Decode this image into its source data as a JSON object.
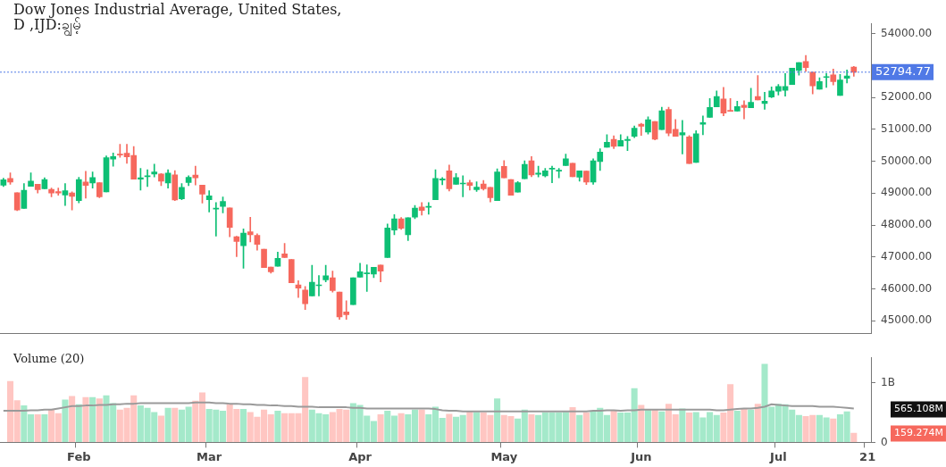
{
  "chart_data": [
    {
      "type": "candlestick",
      "title": "Dow Jones Industrial Average, United States,",
      "subtitle": "D ,IJD:ချွမ့်",
      "categories": [
        null,
        null,
        null,
        null,
        null,
        null,
        null,
        null,
        null,
        null,
        null,
        null,
        null,
        null,
        null,
        null,
        null,
        null,
        null,
        null,
        null,
        null,
        null,
        null,
        null,
        null,
        null,
        null,
        null,
        null,
        null,
        null,
        null,
        null,
        null,
        null,
        null,
        null,
        null,
        null,
        null,
        null,
        null,
        null,
        null,
        null,
        null,
        null,
        null,
        null,
        null,
        null,
        null,
        null,
        null,
        null,
        null,
        null,
        null,
        null,
        null,
        null,
        null,
        null,
        null,
        null,
        null,
        null,
        null,
        null,
        null,
        null,
        null,
        null,
        null,
        null,
        null,
        null,
        null,
        null,
        null,
        null,
        null,
        null,
        null,
        null,
        null,
        null,
        null,
        null,
        null,
        null,
        null,
        null,
        null,
        null,
        null,
        null,
        null,
        null,
        null,
        null,
        null,
        null,
        null,
        null,
        null,
        null,
        null,
        null,
        null,
        null,
        null,
        null,
        null,
        null,
        null,
        null,
        null,
        null,
        null,
        null,
        null,
        null,
        null,
        null,
        null
      ],
      "ohlc": [
        [
          49250,
          49470,
          49210,
          49420
        ],
        [
          49463,
          49637,
          49280,
          49344
        ],
        [
          49015,
          49015,
          48448,
          48475
        ],
        [
          48521,
          49299,
          48521,
          49088
        ],
        [
          49216,
          49637,
          49216,
          49381
        ],
        [
          49280,
          49280,
          49006,
          49106
        ],
        [
          49134,
          49482,
          49134,
          49427
        ],
        [
          49116,
          49161,
          48887,
          49006
        ],
        [
          49052,
          49161,
          48933,
          49006
        ],
        [
          48942,
          49299,
          48613,
          49079
        ],
        [
          49006,
          49042,
          48475,
          48896
        ],
        [
          48768,
          49500,
          48695,
          49427
        ],
        [
          49353,
          49683,
          48841,
          49244
        ],
        [
          49317,
          49664,
          49161,
          49491
        ],
        [
          49326,
          49326,
          48859,
          48887
        ],
        [
          49042,
          50168,
          49042,
          50113
        ],
        [
          50067,
          50259,
          49847,
          50149
        ],
        [
          50213,
          50533,
          50122,
          50195
        ],
        [
          50250,
          50533,
          49939,
          50140
        ],
        [
          50186,
          50460,
          49436,
          49436
        ],
        [
          49436,
          49774,
          49097,
          49482
        ],
        [
          49518,
          49738,
          49207,
          49545
        ],
        [
          49600,
          49911,
          49509,
          49664
        ],
        [
          49600,
          49619,
          49235,
          49372
        ],
        [
          49317,
          49738,
          49161,
          49628
        ],
        [
          49573,
          49710,
          48768,
          48787
        ],
        [
          48823,
          49299,
          48795,
          49180
        ],
        [
          49335,
          49546,
          49235,
          49500
        ],
        [
          49564,
          49847,
          49253,
          49482
        ],
        [
          49253,
          49253,
          48686,
          48969
        ],
        [
          48795,
          49079,
          48411,
          48914
        ],
        [
          48503,
          48704,
          47652,
          48521
        ],
        [
          48585,
          48878,
          48384,
          48741
        ],
        [
          48539,
          48539,
          47634,
          47927
        ],
        [
          47634,
          47652,
          47012,
          47488
        ],
        [
          47350,
          47881,
          46646,
          47744
        ],
        [
          47789,
          48247,
          47469,
          47698
        ],
        [
          47680,
          47725,
          47213,
          47396
        ],
        [
          47241,
          47241,
          46664,
          46664
        ],
        [
          46682,
          46682,
          46490,
          46536
        ],
        [
          46710,
          47149,
          46710,
          46957
        ],
        [
          47094,
          47423,
          46984,
          46984
        ],
        [
          46920,
          46920,
          46188,
          46188
        ],
        [
          46124,
          46252,
          45731,
          46024
        ],
        [
          45960,
          46070,
          45347,
          45530
        ],
        [
          45777,
          46737,
          45777,
          46207
        ],
        [
          46097,
          46417,
          45777,
          46125
        ],
        [
          46280,
          46737,
          46216,
          46408
        ],
        [
          46344,
          46555,
          45896,
          45942
        ],
        [
          45896,
          45896,
          45045,
          45118
        ],
        [
          45274,
          45622,
          45045,
          45192
        ],
        [
          45503,
          46344,
          45503,
          46344
        ],
        [
          46362,
          46802,
          46362,
          46536
        ],
        [
          46472,
          46756,
          45914,
          46500
        ],
        [
          46463,
          46673,
          46353,
          46673
        ],
        [
          46747,
          46747,
          46216,
          46555
        ],
        [
          46984,
          48036,
          46984,
          47908
        ],
        [
          47844,
          48329,
          47698,
          48192
        ],
        [
          48192,
          48238,
          47863,
          47899
        ],
        [
          47698,
          48228,
          47515,
          48228
        ],
        [
          48247,
          48613,
          48201,
          48530
        ],
        [
          48567,
          48704,
          48311,
          48457
        ],
        [
          48558,
          48704,
          48338,
          48576
        ],
        [
          48796,
          49738,
          48796,
          49463
        ],
        [
          49408,
          49491,
          49262,
          49445
        ],
        [
          49701,
          49884,
          49070,
          49134
        ],
        [
          49280,
          49619,
          49280,
          49491
        ],
        [
          49289,
          49546,
          48887,
          49317
        ],
        [
          49326,
          49408,
          49097,
          49244
        ],
        [
          49106,
          49354,
          49052,
          49189
        ],
        [
          49289,
          49399,
          49097,
          49134
        ],
        [
          49180,
          49180,
          48722,
          48860
        ],
        [
          48768,
          49765,
          48768,
          49665
        ],
        [
          49838,
          50021,
          49482,
          49482
        ],
        [
          49427,
          49427,
          48933,
          48933
        ],
        [
          49033,
          49363,
          49033,
          49326
        ],
        [
          49454,
          50012,
          49454,
          49902
        ],
        [
          50012,
          50149,
          49518,
          49573
        ],
        [
          49591,
          49847,
          49509,
          49628
        ],
        [
          49546,
          49774,
          49509,
          49701
        ],
        [
          49756,
          49847,
          49326,
          49784
        ],
        [
          49692,
          49774,
          49482,
          49710
        ],
        [
          49866,
          50222,
          49866,
          50076
        ],
        [
          49939,
          49939,
          49518,
          49518
        ],
        [
          49500,
          49701,
          49372,
          49701
        ],
        [
          49692,
          49692,
          49271,
          49344
        ],
        [
          49344,
          50076,
          49280,
          50012
        ],
        [
          49994,
          50396,
          49710,
          50286
        ],
        [
          50442,
          50835,
          50442,
          50597
        ],
        [
          50689,
          50799,
          50396,
          50469
        ],
        [
          50478,
          50835,
          50478,
          50652
        ],
        [
          50652,
          50780,
          50332,
          50689
        ],
        [
          50780,
          51110,
          50744,
          51036
        ],
        [
          51164,
          51192,
          50808,
          51100
        ],
        [
          50917,
          51393,
          50853,
          51302
        ],
        [
          51247,
          51247,
          50670,
          50689
        ],
        [
          50991,
          51695,
          50991,
          51585
        ],
        [
          51622,
          51695,
          50799,
          50881
        ],
        [
          50999,
          51311,
          50780,
          50780
        ],
        [
          50826,
          51283,
          50232,
          50899
        ],
        [
          50762,
          50808,
          49930,
          49930
        ],
        [
          49966,
          50963,
          49966,
          50863
        ],
        [
          51164,
          51421,
          50835,
          51210
        ],
        [
          51375,
          51969,
          51375,
          51686
        ],
        [
          51704,
          52207,
          51704,
          52033
        ],
        [
          51951,
          52317,
          51430,
          51512
        ],
        [
          51594,
          51969,
          51567,
          51567
        ],
        [
          51576,
          51887,
          51576,
          51713
        ],
        [
          51759,
          51896,
          51329,
          51686
        ],
        [
          51677,
          52290,
          51677,
          51851
        ],
        [
          52033,
          52692,
          51924,
          51924
        ],
        [
          51814,
          52161,
          51631,
          51887
        ],
        [
          52015,
          52335,
          51997,
          52207
        ],
        [
          52198,
          52408,
          52079,
          52344
        ],
        [
          52225,
          52756,
          52042,
          52344
        ],
        [
          52408,
          52921,
          52408,
          52921
        ],
        [
          52847,
          53094,
          52701,
          53094
        ],
        [
          53131,
          53323,
          52820,
          52939
        ],
        [
          52793,
          52793,
          52116,
          52363
        ],
        [
          52262,
          52619,
          52262,
          52500
        ],
        [
          52628,
          52756,
          52317,
          52655
        ],
        [
          52710,
          52893,
          52390,
          52500
        ],
        [
          52061,
          52728,
          52061,
          52546
        ],
        [
          52600,
          52866,
          52454,
          52673
        ],
        [
          52957,
          52976,
          52664,
          52794.77
        ],
        null,
        null
      ],
      "colors": [
        "#0dbf74",
        "#f6685d",
        "#f6685d",
        "#0dbf74",
        "#0dbf74",
        "#f6685d",
        "#0dbf74",
        "#f6685d",
        "#f6685d",
        "#0dbf74",
        "#f6685d",
        "#0dbf74",
        "#f6685d",
        "#0dbf74",
        "#f6685d",
        "#0dbf74",
        "#0dbf74",
        "#f6685d",
        "#f6685d",
        "#f6685d",
        "#0dbf74",
        "#0dbf74",
        "#0dbf74",
        "#f6685d",
        "#0dbf74",
        "#f6685d",
        "#0dbf74",
        "#0dbf74",
        "#f6685d",
        "#f6685d",
        "#0dbf74",
        "#0dbf74",
        "#0dbf74",
        "#f6685d",
        "#f6685d",
        "#0dbf74",
        "#f6685d",
        "#f6685d",
        "#f6685d",
        "#f6685d",
        "#0dbf74",
        "#f6685d",
        "#f6685d",
        "#f6685d",
        "#f6685d",
        "#0dbf74",
        "#0dbf74",
        "#0dbf74",
        "#f6685d",
        "#f6685d",
        "#f6685d",
        "#0dbf74",
        "#0dbf74",
        "#0dbf74",
        "#0dbf74",
        "#f6685d",
        "#0dbf74",
        "#0dbf74",
        "#f6685d",
        "#0dbf74",
        "#0dbf74",
        "#f6685d",
        "#0dbf74",
        "#0dbf74",
        "#0dbf74",
        "#f6685d",
        "#0dbf74",
        "#0dbf74",
        "#f6685d",
        "#0dbf74",
        "#f6685d",
        "#f6685d",
        "#0dbf74",
        "#f6685d",
        "#f6685d",
        "#0dbf74",
        "#0dbf74",
        "#f6685d",
        "#0dbf74",
        "#0dbf74",
        "#0dbf74",
        "#0dbf74",
        "#0dbf74",
        "#f6685d",
        "#0dbf74",
        "#f6685d",
        "#0dbf74",
        "#0dbf74",
        "#0dbf74",
        "#f6685d",
        "#0dbf74",
        "#0dbf74",
        "#0dbf74",
        "#f6685d",
        "#0dbf74",
        "#f6685d",
        "#0dbf74",
        "#f6685d",
        "#f6685d",
        "#0dbf74",
        "#f6685d",
        "#0dbf74",
        "#0dbf74",
        "#0dbf74",
        "#0dbf74",
        "#f6685d",
        "#f6685d",
        "#0dbf74",
        "#f6685d",
        "#0dbf74",
        "#f6685d",
        "#0dbf74",
        "#0dbf74",
        "#0dbf74",
        "#0dbf74",
        "#0dbf74",
        "#0dbf74",
        "#f6685d",
        "#f6685d",
        "#0dbf74",
        "#0dbf74",
        "#f6685d",
        "#0dbf74",
        "#0dbf74",
        "#f6685d",
        null,
        null
      ],
      "ylim": [
        44590,
        54330
      ],
      "yticks": [
        {
          "value": 45000,
          "label": "45000.00"
        },
        {
          "value": 46000,
          "label": "46000.00"
        },
        {
          "value": 47000,
          "label": "47000.00"
        },
        {
          "value": 48000,
          "label": "48000.00"
        },
        {
          "value": 49000,
          "label": "49000.00"
        },
        {
          "value": 50000,
          "label": "50000.00"
        },
        {
          "value": 51000,
          "label": "51000.00"
        },
        {
          "value": 52000,
          "label": "52000.00"
        },
        {
          "value": 53000,
          "label": null
        },
        {
          "value": 54000,
          "label": "54000.00"
        }
      ],
      "tick_labels": "y",
      "ref_lines": [
        {
          "axis": "y",
          "value": 52794.77,
          "label": "52794.77",
          "color": "#5079e6",
          "line_style": "dotted"
        }
      ]
    },
    {
      "type": "bar",
      "title": "Volume (20)",
      "categories": [
        null,
        null,
        null,
        null,
        null,
        null,
        null,
        null,
        null,
        null,
        null,
        "Feb",
        null,
        null,
        null,
        null,
        null,
        null,
        null,
        null,
        null,
        null,
        null,
        null,
        null,
        null,
        null,
        null,
        null,
        null,
        "Mar",
        null,
        null,
        null,
        null,
        null,
        null,
        null,
        null,
        null,
        null,
        null,
        null,
        null,
        null,
        null,
        null,
        null,
        null,
        null,
        null,
        null,
        "Apr",
        null,
        null,
        null,
        null,
        null,
        null,
        null,
        null,
        null,
        null,
        null,
        null,
        null,
        null,
        null,
        null,
        null,
        null,
        null,
        null,
        "May",
        null,
        null,
        null,
        null,
        null,
        null,
        null,
        null,
        null,
        null,
        null,
        null,
        null,
        null,
        null,
        null,
        null,
        null,
        null,
        "Jun",
        null,
        null,
        null,
        null,
        null,
        null,
        null,
        null,
        null,
        null,
        null,
        null,
        null,
        null,
        null,
        null,
        null,
        null,
        null,
        "Jul",
        null,
        null,
        null,
        null,
        null,
        null,
        null,
        null,
        null,
        null,
        null,
        null,
        "21"
      ],
      "series": [
        {
          "type": "bar",
          "values": [
            null,
            1.03,
            0.71,
            0.62,
            0.47,
            0.47,
            0.47,
            0.55,
            0.49,
            0.72,
            0.78,
            0.64,
            0.76,
            0.76,
            0.74,
            0.79,
            0.66,
            0.55,
            0.58,
            0.79,
            0.62,
            0.58,
            0.51,
            0.45,
            0.58,
            0.58,
            0.55,
            0.6,
            0.7,
            0.84,
            0.56,
            0.55,
            0.53,
            0.64,
            0.56,
            0.56,
            0.51,
            0.43,
            0.55,
            0.47,
            0.53,
            0.49,
            0.49,
            0.49,
            1.1,
            0.55,
            0.49,
            0.47,
            0.51,
            0.56,
            0.55,
            0.66,
            0.63,
            0.45,
            0.36,
            0.47,
            0.53,
            0.45,
            0.49,
            0.47,
            0.55,
            0.55,
            0.47,
            0.6,
            0.41,
            0.48,
            0.43,
            0.46,
            0.53,
            0.51,
            0.5,
            0.46,
            0.74,
            0.46,
            0.44,
            0.4,
            0.55,
            0.47,
            0.46,
            0.5,
            0.5,
            0.5,
            0.51,
            0.59,
            0.46,
            0.5,
            0.53,
            0.58,
            0.46,
            0.53,
            0.5,
            0.5,
            0.91,
            0.63,
            0.55,
            0.55,
            0.52,
            0.65,
            0.47,
            0.57,
            0.5,
            0.51,
            0.42,
            0.51,
            0.46,
            0.5,
            0.98,
            0.53,
            0.57,
            0.55,
            0.65,
            1.32,
            0.6,
            0.65,
            0.64,
            0.55,
            0.46,
            0.44,
            0.46,
            0.46,
            0.42,
            0.4,
            0.47,
            0.52,
            0.16,
            null,
            null
          ],
          "colors": [
            "#a4e9ca",
            "#ffc6c2",
            "#ffc6c2",
            "#a4e9ca",
            "#a4e9ca",
            "#ffc6c2",
            "#a4e9ca",
            "#ffc6c2",
            "#ffc6c2",
            "#a4e9ca",
            "#ffc6c2",
            "#a4e9ca",
            "#ffc6c2",
            "#a4e9ca",
            "#ffc6c2",
            "#a4e9ca",
            "#a4e9ca",
            "#ffc6c2",
            "#ffc6c2",
            "#ffc6c2",
            "#a4e9ca",
            "#a4e9ca",
            "#a4e9ca",
            "#ffc6c2",
            "#a4e9ca",
            "#ffc6c2",
            "#a4e9ca",
            "#a4e9ca",
            "#ffc6c2",
            "#ffc6c2",
            "#a4e9ca",
            "#a4e9ca",
            "#a4e9ca",
            "#ffc6c2",
            "#ffc6c2",
            "#a4e9ca",
            "#ffc6c2",
            "#ffc6c2",
            "#ffc6c2",
            "#ffc6c2",
            "#a4e9ca",
            "#ffc6c2",
            "#ffc6c2",
            "#ffc6c2",
            "#ffc6c2",
            "#a4e9ca",
            "#a4e9ca",
            "#a4e9ca",
            "#ffc6c2",
            "#ffc6c2",
            "#ffc6c2",
            "#a4e9ca",
            "#a4e9ca",
            "#a4e9ca",
            "#a4e9ca",
            "#ffc6c2",
            "#a4e9ca",
            "#a4e9ca",
            "#ffc6c2",
            "#a4e9ca",
            "#a4e9ca",
            "#ffc6c2",
            "#a4e9ca",
            "#a4e9ca",
            "#a4e9ca",
            "#ffc6c2",
            "#a4e9ca",
            "#a4e9ca",
            "#ffc6c2",
            "#a4e9ca",
            "#ffc6c2",
            "#ffc6c2",
            "#a4e9ca",
            "#ffc6c2",
            "#ffc6c2",
            "#a4e9ca",
            "#a4e9ca",
            "#ffc6c2",
            "#a4e9ca",
            "#a4e9ca",
            "#a4e9ca",
            "#a4e9ca",
            "#a4e9ca",
            "#ffc6c2",
            "#a4e9ca",
            "#ffc6c2",
            "#a4e9ca",
            "#a4e9ca",
            "#a4e9ca",
            "#ffc6c2",
            "#a4e9ca",
            "#a4e9ca",
            "#a4e9ca",
            "#ffc6c2",
            "#a4e9ca",
            "#ffc6c2",
            "#a4e9ca",
            "#ffc6c2",
            "#ffc6c2",
            "#a4e9ca",
            "#ffc6c2",
            "#a4e9ca",
            "#a4e9ca",
            "#a4e9ca",
            "#a4e9ca",
            "#ffc6c2",
            "#ffc6c2",
            "#a4e9ca",
            "#ffc6c2",
            "#a4e9ca",
            "#ffc6c2",
            "#a4e9ca",
            "#a4e9ca",
            "#a4e9ca",
            "#a4e9ca",
            "#a4e9ca",
            "#a4e9ca",
            "#ffc6c2",
            "#ffc6c2",
            "#a4e9ca",
            "#a4e9ca",
            "#ffc6c2",
            "#a4e9ca",
            "#a4e9ca",
            "#ffc6c2",
            null,
            null
          ]
        },
        {
          "type": "line",
          "color": "#9a9a9a",
          "values": [
            0.53,
            0.53,
            0.53,
            0.53,
            0.54,
            0.54,
            0.55,
            0.55,
            0.57,
            0.59,
            0.61,
            0.61,
            0.62,
            0.62,
            0.63,
            0.63,
            0.64,
            0.64,
            0.65,
            0.65,
            0.66,
            0.66,
            0.66,
            0.66,
            0.66,
            0.66,
            0.66,
            0.66,
            0.67,
            0.67,
            0.67,
            0.66,
            0.66,
            0.65,
            0.65,
            0.64,
            0.64,
            0.63,
            0.63,
            0.62,
            0.62,
            0.61,
            0.61,
            0.6,
            0.6,
            0.6,
            0.59,
            0.59,
            0.59,
            0.59,
            0.59,
            0.58,
            0.58,
            0.57,
            0.57,
            0.57,
            0.57,
            0.57,
            0.57,
            0.57,
            0.57,
            0.57,
            0.57,
            0.56,
            0.54,
            0.53,
            0.53,
            0.52,
            0.52,
            0.52,
            0.52,
            0.52,
            0.52,
            0.52,
            0.52,
            0.52,
            0.52,
            0.52,
            0.52,
            0.52,
            0.52,
            0.52,
            0.52,
            0.52,
            0.52,
            0.52,
            0.53,
            0.53,
            0.54,
            0.54,
            0.53,
            0.54,
            0.54,
            0.55,
            0.55,
            0.55,
            0.55,
            0.55,
            0.55,
            0.55,
            0.55,
            0.55,
            0.55,
            0.55,
            0.54,
            0.54,
            0.55,
            0.56,
            0.57,
            0.57,
            0.58,
            0.6,
            0.64,
            0.63,
            0.62,
            0.61,
            0.61,
            0.61,
            0.61,
            0.6,
            0.6,
            0.6,
            0.59,
            0.58,
            0.57,
            null,
            null
          ]
        }
      ],
      "ylim": [
        0,
        1.43
      ],
      "yticks": [
        {
          "value": 1,
          "label": "1B"
        },
        {
          "value": 0,
          "label": "0"
        }
      ],
      "marker": "none",
      "annotations": [
        "565.108M",
        "159.274M"
      ]
    }
  ]
}
